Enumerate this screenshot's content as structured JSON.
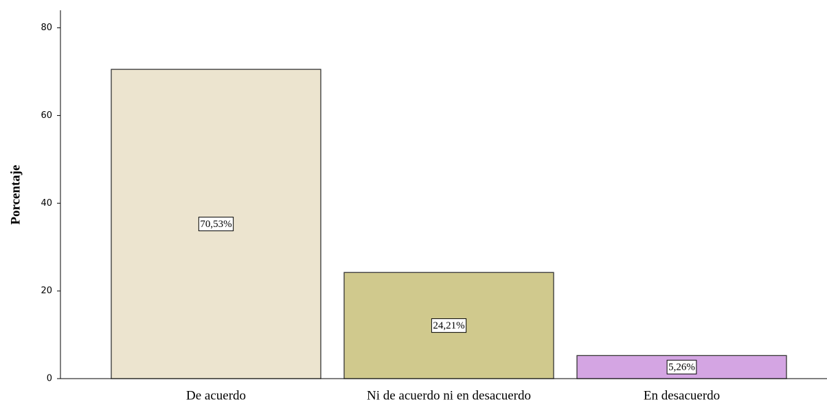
{
  "chart_data": {
    "type": "bar",
    "y_label": "Porcentaje",
    "categories": [
      "De acuerdo",
      "Ni de acuerdo ni en desacuerdo",
      "En desacuerdo"
    ],
    "values": [
      70.53,
      24.21,
      5.26
    ],
    "value_labels": [
      "70,53%",
      "24,21%",
      "5,26%"
    ],
    "colors": [
      "#ece4cf",
      "#d0c98d",
      "#d4a5e3"
    ],
    "ylim": [
      0,
      84
    ],
    "yticks": [
      0,
      20,
      40,
      60,
      80
    ],
    "grid": false
  }
}
